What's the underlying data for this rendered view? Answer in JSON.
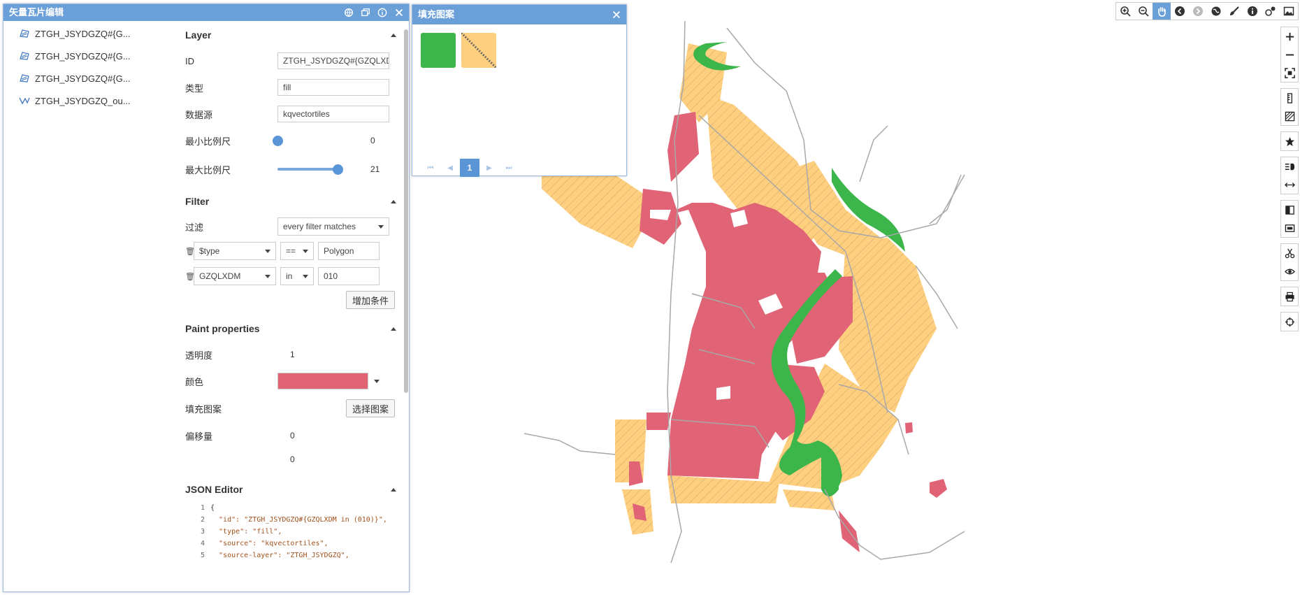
{
  "editor": {
    "title": "矢量瓦片编辑",
    "layers": [
      {
        "name": "ZTGH_JSYDGZQ#{G...",
        "icon": "polygon-layer-icon"
      },
      {
        "name": "ZTGH_JSYDGZQ#{G...",
        "icon": "polygon-layer-icon"
      },
      {
        "name": "ZTGH_JSYDGZQ#{G...",
        "icon": "polygon-layer-icon"
      },
      {
        "name": "ZTGH_JSYDGZQ_ou...",
        "icon": "line-layer-icon"
      }
    ],
    "layer_section": {
      "title": "Layer",
      "id_label": "ID",
      "id_value": "ZTGH_JSYDGZQ#{GZQLXDM in (010)}",
      "type_label": "类型",
      "type_value": "fill",
      "source_label": "数据源",
      "source_value": "kqvectortiles",
      "minzoom_label": "最小比例尺",
      "minzoom_value": "0",
      "minzoom_fraction": 0,
      "maxzoom_label": "最大比例尺",
      "maxzoom_value": "21",
      "maxzoom_fraction": 1
    },
    "filter_section": {
      "title": "Filter",
      "filter_label": "过滤",
      "filter_mode": "every filter matches",
      "conditions": [
        {
          "field": "$type",
          "op": "==",
          "value": "Polygon"
        },
        {
          "field": "GZQLXDM",
          "op": "in",
          "value": "010"
        }
      ],
      "add_button": "增加条件"
    },
    "paint_section": {
      "title": "Paint properties",
      "opacity_label": "透明度",
      "opacity_value": "1",
      "color_label": "颜色",
      "color_value": "#e06376",
      "pattern_label": "填充图案",
      "pattern_button": "选择图案",
      "offset_label": "偏移量",
      "offset_x": "0",
      "offset_y": "0"
    },
    "json_section": {
      "title": "JSON Editor",
      "lines": [
        {
          "n": "1",
          "text": "{"
        },
        {
          "n": "2",
          "text": "  \"id\": \"ZTGH_JSYDGZQ#{GZQLXDM in (010)}\","
        },
        {
          "n": "3",
          "text": "  \"type\": \"fill\","
        },
        {
          "n": "4",
          "text": "  \"source\": \"kqvectortiles\","
        },
        {
          "n": "5",
          "text": "  \"source-layer\": \"ZTGH_JSYDGZQ\","
        }
      ]
    }
  },
  "fill_panel": {
    "title": "填充图案",
    "patterns": [
      {
        "name": "green-solid-pattern",
        "color": "#3cb54a"
      },
      {
        "name": "orange-hatch-pattern",
        "color": "#fdcf7f"
      }
    ],
    "current_page": "1"
  },
  "map_colors": {
    "urban": "#e06376",
    "planned": "#fdcf7f",
    "river": "#3cb54a",
    "roads": "#a8a8a8"
  }
}
